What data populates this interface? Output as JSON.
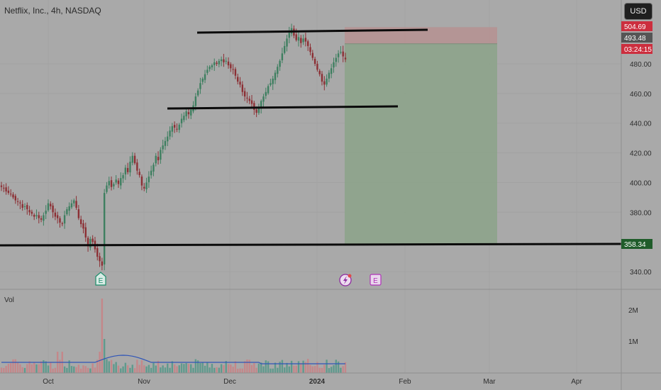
{
  "symbol": {
    "title": "Netflix, Inc., 4h, NASDAQ"
  },
  "currency_button": "USD",
  "price_axis": {
    "ticks": [
      "480.00",
      "460.00",
      "440.00",
      "420.00",
      "400.00",
      "380.00",
      "340.00"
    ],
    "target_label": "504.69",
    "last_price_label": "493.48",
    "countdown_label": "03:24:15",
    "support_label": "358.34",
    "colors": {
      "target": "#cc2e3e",
      "last": "#555555",
      "countdown": "#cc2e3e",
      "support": "#1f5c2a"
    }
  },
  "volume_pane": {
    "label": "Vol",
    "ticks": [
      "2M",
      "1M"
    ]
  },
  "time_axis": {
    "labels": [
      "Oct",
      "Nov",
      "Dec",
      "2024",
      "Feb",
      "Mar",
      "Apr"
    ]
  },
  "markers": {
    "earnings": "E",
    "dividend_icon": "lightning-icon"
  },
  "chart_data": {
    "type": "candlestick",
    "title": "Netflix, Inc., 4h, NASDAQ",
    "y_axis_ticks": [
      480,
      460,
      440,
      420,
      400,
      380,
      340
    ],
    "ylim": [
      328,
      510
    ],
    "volume_ticks": [
      "2M",
      "1M"
    ],
    "x_axis_labels": [
      "Oct",
      "Nov",
      "Dec",
      "2024",
      "Feb",
      "Mar",
      "Apr"
    ],
    "price_path_closes": [
      397,
      396,
      394,
      393,
      392,
      390,
      388,
      387,
      386,
      383,
      384,
      382,
      380,
      379,
      377,
      378,
      376,
      375,
      378,
      381,
      386,
      384,
      380,
      377,
      376,
      373,
      372,
      378,
      382,
      384,
      386,
      388,
      383,
      376,
      372,
      369,
      363,
      357,
      362,
      360,
      355,
      350,
      347,
      344,
      393,
      398,
      401,
      397,
      399,
      402,
      399,
      403,
      405,
      410,
      407,
      414,
      418,
      413,
      408,
      405,
      398,
      396,
      400,
      404,
      408,
      412,
      418,
      415,
      422,
      425,
      428,
      431,
      435,
      438,
      437,
      436,
      439,
      443,
      445,
      448,
      446,
      449,
      452,
      458,
      462,
      467,
      470,
      473,
      476,
      478,
      479,
      481,
      480,
      482,
      483,
      481,
      482,
      479,
      477,
      476,
      472,
      468,
      466,
      461,
      458,
      457,
      455,
      453,
      449,
      447,
      451,
      455,
      458,
      461,
      465,
      467,
      470,
      474,
      478,
      482,
      487,
      492,
      497,
      501,
      504,
      499,
      496,
      498,
      494,
      497,
      495,
      492,
      488,
      484,
      480,
      476,
      473,
      468,
      466,
      470,
      474,
      477,
      481,
      484,
      487,
      488,
      485,
      483
    ],
    "horizontal_levels": [
      504.5,
      451,
      358.34
    ],
    "position_tool": {
      "type": "short",
      "entry": 493.48,
      "stop": 504.69,
      "target": 358.34
    },
    "annotations": [
      "E",
      "E",
      "dividend"
    ]
  }
}
